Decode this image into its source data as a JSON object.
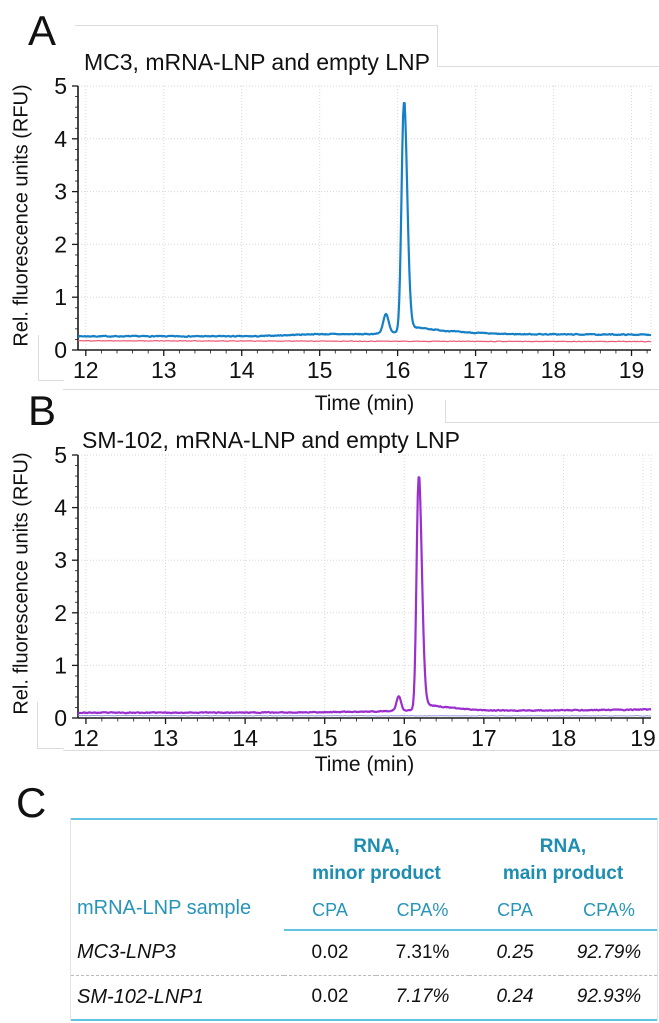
{
  "panels": {
    "a": {
      "letter": "A",
      "title": "MC3, mRNA-LNP and empty LNP",
      "ylabel": "Rel. fluorescence units (RFU)",
      "xlabel": "Time (min)"
    },
    "b": {
      "letter": "B",
      "title": "SM-102, mRNA-LNP and empty LNP",
      "ylabel": "Rel. fluorescence units (RFU)",
      "xlabel": "Time (min)"
    },
    "c": {
      "letter": "C"
    }
  },
  "colors": {
    "trace_blue": "#1680c6",
    "trace_pink": "#ef5878",
    "trace_purple": "#9a2fce",
    "trace_faint_blue": "#8a90d8",
    "table_teal": "#2794ba",
    "table_rule_cyan": "#63c3e3",
    "grid_gray": "#d9d9d9",
    "axis_black": "#1a1a1a"
  },
  "chart_data": [
    {
      "type": "line",
      "panel": "A",
      "title": "MC3, mRNA-LNP and empty LNP",
      "xlabel": "Time (min)",
      "ylabel": "Rel. fluorescence units (RFU)",
      "xlim": [
        11.9,
        19.25
      ],
      "ylim": [
        0,
        5
      ],
      "xticks": [
        12,
        13,
        14,
        15,
        16,
        17,
        18,
        19
      ],
      "yticks": [
        0,
        1,
        2,
        3,
        4,
        5
      ],
      "grid": true,
      "legend": "none",
      "main_peak_time_min": 16.08,
      "main_peak_rfu": 4.6,
      "minor_peak_time_min": 15.85,
      "minor_peak_rfu": 0.65,
      "series": [
        {
          "name": "empty LNP",
          "color": "#ef5878",
          "width": 1.2,
          "noise": 0.009,
          "seed": 11,
          "baseline": [
            [
              11.9,
              0.175
            ],
            [
              19.25,
              0.16
            ]
          ],
          "peaks": []
        },
        {
          "name": "mRNA-LNP (MC3-LNP3)",
          "color": "#1680c6",
          "width": 2.2,
          "noise": 0.013,
          "seed": 7,
          "baseline": [
            [
              11.9,
              0.26
            ],
            [
              14.2,
              0.26
            ],
            [
              14.9,
              0.3
            ],
            [
              15.6,
              0.3
            ],
            [
              16.35,
              0.35
            ],
            [
              17.3,
              0.3
            ],
            [
              19.25,
              0.29
            ]
          ],
          "peaks": [
            {
              "center": 15.85,
              "height": 0.36,
              "sigma_l": 0.035,
              "sigma_r": 0.035,
              "tail": 0
            },
            {
              "center": 16.08,
              "height": 4.34,
              "sigma_l": 0.03,
              "sigma_r": 0.042,
              "tail": 0.03
            }
          ]
        }
      ]
    },
    {
      "type": "line",
      "panel": "B",
      "title": "SM-102, mRNA-LNP and empty LNP",
      "xlabel": "Time (min)",
      "ylabel": "Rel. fluorescence units (RFU)",
      "xlim": [
        11.9,
        19.1
      ],
      "ylim": [
        0,
        5
      ],
      "xticks": [
        12,
        13,
        14,
        15,
        16,
        17,
        18,
        19
      ],
      "yticks": [
        0,
        1,
        2,
        3,
        4,
        5
      ],
      "grid": true,
      "legend": "none",
      "main_peak_time_min": 16.18,
      "main_peak_rfu": 4.6,
      "minor_peak_time_min": 15.93,
      "minor_peak_rfu": 0.4,
      "series": [
        {
          "name": "empty LNP",
          "color": "#8a90d8",
          "width": 0.9,
          "noise": 0.007,
          "seed": 31,
          "baseline": [
            [
              11.9,
              0.045
            ],
            [
              19.1,
              0.04
            ]
          ],
          "peaks": []
        },
        {
          "name": "mRNA-LNP (SM-102-LNP1)",
          "color": "#9a2fce",
          "width": 2.2,
          "noise": 0.013,
          "seed": 23,
          "baseline": [
            [
              11.9,
              0.1
            ],
            [
              14.5,
              0.105
            ],
            [
              15.55,
              0.12
            ],
            [
              16.4,
              0.16
            ],
            [
              17.1,
              0.135
            ],
            [
              19.1,
              0.16
            ]
          ],
          "peaks": [
            {
              "center": 15.93,
              "height": 0.27,
              "sigma_l": 0.028,
              "sigma_r": 0.028,
              "tail": 0
            },
            {
              "center": 16.18,
              "height": 4.42,
              "sigma_l": 0.026,
              "sigma_r": 0.04,
              "tail": 0.03
            }
          ]
        }
      ]
    }
  ],
  "table": {
    "sample_header": "mRNA-LNP sample",
    "groups": [
      {
        "line1": "RNA,",
        "line2": "minor product"
      },
      {
        "line1": "RNA,",
        "line2": "main product"
      }
    ],
    "subheaders": [
      "CPA",
      "CPA%",
      "CPA",
      "CPA%"
    ],
    "rows": [
      {
        "sample": "MC3-LNP3",
        "values": [
          "0.02",
          "7.31%",
          "0.25",
          "92.79%"
        ]
      },
      {
        "sample": "SM-102-LNP1",
        "values": [
          "0.02",
          "7.17%",
          "0.24",
          "92.93%"
        ]
      }
    ]
  }
}
